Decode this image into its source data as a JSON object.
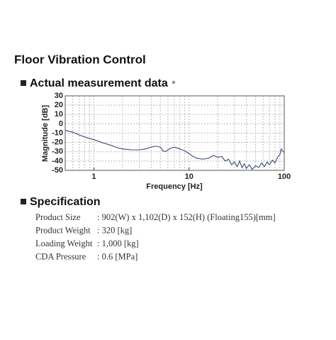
{
  "title": "Floor Vibration Control",
  "measurement": {
    "heading": "Actual measurement data"
  },
  "chart_data": {
    "type": "line",
    "xlabel": "Frequency [Hz]",
    "ylabel": "Magnitude [dB]",
    "x": [
      0.5,
      0.6,
      0.7,
      0.85,
      1,
      1.2,
      1.5,
      1.8,
      2,
      2.5,
      3,
      3.5,
      4,
      4.5,
      5,
      5.3,
      5.6,
      6,
      6.5,
      7,
      8,
      9,
      10,
      11,
      12,
      14,
      16,
      18,
      20,
      22,
      24,
      26,
      28,
      30,
      32,
      34,
      36,
      38,
      40,
      43,
      46,
      50,
      54,
      58,
      62,
      66,
      70,
      75,
      80,
      85,
      90,
      93,
      96,
      100
    ],
    "series": [
      {
        "name": "Magnitude",
        "color": "#3a4a7a",
        "values": [
          -7,
          -9,
          -12,
          -15,
          -17,
          -20,
          -23,
          -26,
          -27,
          -28,
          -28,
          -27,
          -25,
          -24,
          -25,
          -29,
          -30,
          -28,
          -26,
          -25,
          -27,
          -29,
          -32,
          -35,
          -37,
          -38,
          -37,
          -34,
          -36,
          -35,
          -40,
          -38,
          -44,
          -41,
          -46,
          -40,
          -47,
          -43,
          -48,
          -44,
          -49,
          -45,
          -47,
          -42,
          -46,
          -41,
          -44,
          -39,
          -42,
          -36,
          -33,
          -27,
          -29,
          -31
        ]
      }
    ],
    "xscale": "log",
    "xlim": [
      0.5,
      100
    ],
    "xticks": [
      1,
      10,
      100
    ],
    "ylim": [
      -50,
      30
    ],
    "yticks": [
      -50,
      -40,
      -30,
      -20,
      -10,
      0,
      10,
      20,
      30
    ],
    "grid": true
  },
  "specification": {
    "heading": "Specification",
    "rows": [
      [
        "Product Size",
        ": 902(W) x 1,102(D) x 152(H) (Floating155)[mm]"
      ],
      [
        "Product Weight",
        ": 320 [kg]"
      ],
      [
        "Loading Weight",
        ": 1,000 [kg]"
      ],
      [
        "CDA Pressure",
        ": 0.6 [MPa]"
      ]
    ]
  }
}
